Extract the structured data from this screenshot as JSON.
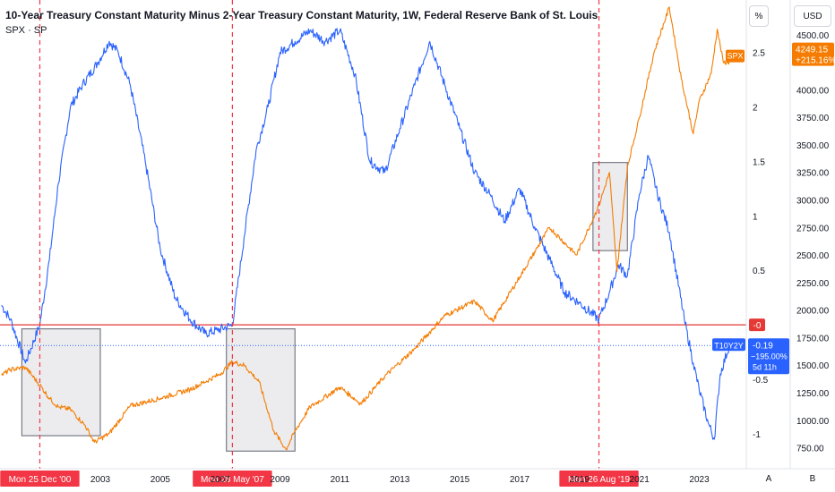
{
  "header": {
    "title": "10-Year Treasury Constant Maturity Minus 2-Year Treasury Constant Maturity, 1W, Federal Reserve Bank of St. Louis",
    "subtitle": "SPX · SP"
  },
  "scale_boxes": {
    "percent_label": "%",
    "currency_label": "USD"
  },
  "corner_buttons": {
    "a": "A",
    "b": "B"
  },
  "colors": {
    "t10y2y": "#2962ff",
    "spx": "#f57c00",
    "zero_line": "#e53935",
    "event_label_bg": "#f23645",
    "box_fill": "#e6e6e9",
    "box_stroke": "#787b86"
  },
  "badges": {
    "spx_tag": "SPX",
    "spx_price": "4249.15",
    "spx_change": "+215.16%",
    "t10y2y_tag": "T10Y2Y",
    "t10y2y_value": "-0.19",
    "t10y2y_change": "−195.00%",
    "t10y2y_countdown": "5d 11h",
    "zero_tag": "-0"
  },
  "events": [
    {
      "date": 2000.98,
      "label": "Mon 25 Dec '00"
    },
    {
      "date": 2007.41,
      "label": "Mon 28 May '07"
    },
    {
      "date": 2019.65,
      "label": "Mon 26 Aug '19"
    }
  ],
  "chart_data": {
    "type": "line",
    "title": "10-Year Treasury Constant Maturity Minus 2-Year Treasury Constant Maturity, 1W, Federal Reserve Bank of St. Louis",
    "x_axis": {
      "range": [
        1999.65,
        2024.57
      ],
      "ticks": [
        "2003",
        "2005",
        "2007",
        "2009",
        "2011",
        "2013",
        "2015",
        "2017",
        "2019",
        "2021",
        "2023"
      ]
    },
    "y_left_axis": {
      "unit": "%",
      "range": [
        -1.32,
        2.98
      ],
      "ticks": [
        "2.5",
        "2",
        "1.5",
        "1",
        "0.5",
        "0",
        "-0.5",
        "-1"
      ]
    },
    "y_right_axis": {
      "unit": "USD",
      "range": [
        560,
        4815
      ],
      "ticks": [
        "4500.00",
        "4000.00",
        "3750.00",
        "3500.00",
        "3250.00",
        "3000.00",
        "2750.00",
        "2500.00",
        "2250.00",
        "2000.00",
        "1750.00",
        "1500.00",
        "1250.00",
        "1000.00",
        "750.00"
      ]
    },
    "series": [
      {
        "name": "T10Y2Y",
        "axis": "left",
        "x": [
          1999.7,
          2000.0,
          2000.5,
          2000.98,
          2001.3,
          2001.6,
          2002.0,
          2002.4,
          2002.9,
          2003.3,
          2003.6,
          2004.0,
          2004.5,
          2005.0,
          2005.5,
          2006.0,
          2006.5,
          2006.9,
          2007.41,
          2007.8,
          2008.2,
          2008.6,
          2009.0,
          2009.5,
          2010.0,
          2010.5,
          2011.0,
          2011.5,
          2012.0,
          2012.5,
          2013.0,
          2013.5,
          2014.0,
          2014.5,
          2015.0,
          2015.5,
          2016.0,
          2016.5,
          2017.0,
          2017.5,
          2018.0,
          2018.5,
          2019.0,
          2019.65,
          2020.0,
          2020.3,
          2020.6,
          2021.0,
          2021.3,
          2021.6,
          2022.0,
          2022.5,
          2022.8,
          2023.0,
          2023.3,
          2023.5,
          2023.7,
          2024.0
        ],
        "values": [
          0.18,
          0.05,
          -0.35,
          0.0,
          0.6,
          1.3,
          2.0,
          2.2,
          2.4,
          2.6,
          2.5,
          2.2,
          1.5,
          0.7,
          0.25,
          0.05,
          -0.08,
          -0.05,
          0.0,
          0.8,
          1.6,
          2.0,
          2.5,
          2.6,
          2.7,
          2.6,
          2.7,
          2.3,
          1.5,
          1.4,
          1.8,
          2.2,
          2.6,
          2.2,
          1.8,
          1.4,
          1.2,
          0.95,
          1.25,
          0.9,
          0.6,
          0.3,
          0.2,
          0.05,
          0.3,
          0.55,
          0.45,
          1.2,
          1.55,
          1.2,
          0.85,
          0.05,
          -0.35,
          -0.6,
          -0.9,
          -1.05,
          -0.45,
          -0.19
        ]
      },
      {
        "name": "SPX",
        "axis": "right",
        "x": [
          1999.7,
          2000.0,
          2000.5,
          2000.98,
          2001.3,
          2001.6,
          2002.0,
          2002.5,
          2002.8,
          2003.3,
          2004.0,
          2005.0,
          2006.0,
          2007.0,
          2007.41,
          2007.8,
          2008.3,
          2008.8,
          2009.2,
          2009.5,
          2010.0,
          2011.0,
          2011.7,
          2012.5,
          2013.5,
          2014.5,
          2015.5,
          2016.1,
          2017.0,
          2018.0,
          2018.9,
          2019.65,
          2020.0,
          2020.25,
          2020.6,
          2021.0,
          2021.5,
          2022.0,
          2022.4,
          2022.8,
          2023.0,
          2023.4,
          2023.6,
          2023.8,
          2024.0
        ],
        "values": [
          1410,
          1460,
          1480,
          1320,
          1200,
          1120,
          1100,
          950,
          800,
          880,
          1130,
          1200,
          1280,
          1420,
          1530,
          1500,
          1350,
          900,
          735,
          900,
          1120,
          1300,
          1150,
          1400,
          1650,
          1950,
          2080,
          1900,
          2300,
          2750,
          2500,
          2950,
          3250,
          2350,
          3300,
          3750,
          4350,
          4750,
          4100,
          3600,
          3900,
          4150,
          4550,
          4250,
          4249.15
        ]
      }
    ]
  }
}
